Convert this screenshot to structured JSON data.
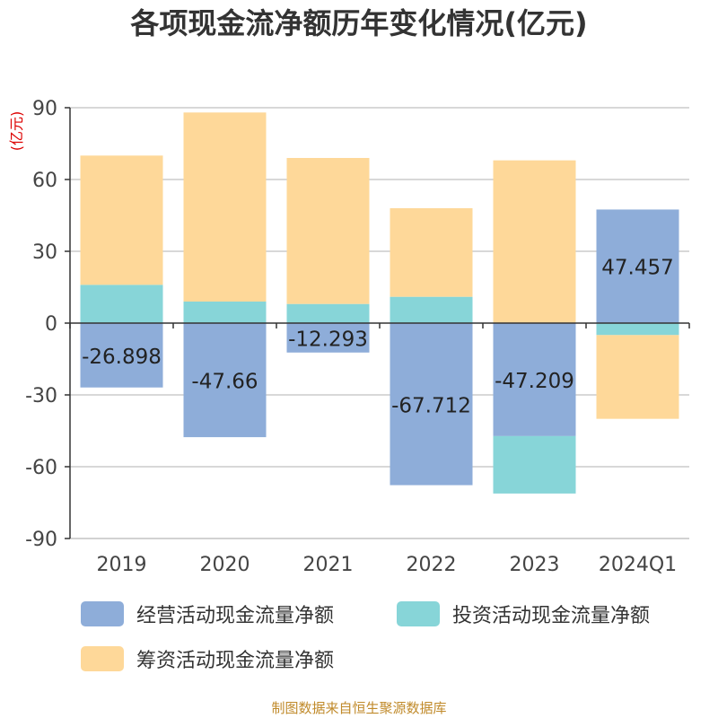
{
  "chart_data": {
    "type": "bar",
    "stacked": true,
    "title": "各项现金流净额历年变化情况(亿元)",
    "ylabel": "(亿元)",
    "xlabel": "",
    "categories": [
      "2019",
      "2020",
      "2021",
      "2022",
      "2023",
      "2024Q1"
    ],
    "ylim": [
      -90,
      90
    ],
    "yticks": [
      90,
      60,
      30,
      0,
      -30,
      -60,
      -90
    ],
    "series": [
      {
        "name": "经营活动现金流量净额",
        "color": "#8eadd9",
        "values": [
          -26.898,
          -47.66,
          -12.293,
          -67.712,
          -47.209,
          47.457
        ],
        "labels": [
          "-26.898",
          "-47.66",
          "-12.293",
          "-67.712",
          "-47.209",
          "47.457"
        ]
      },
      {
        "name": "投资活动现金流量净额",
        "color": "#87d5d8",
        "values": [
          16,
          9,
          8,
          11,
          -24,
          -5
        ]
      },
      {
        "name": "筹资活动现金流量净额",
        "color": "#fed899",
        "values": [
          54,
          79,
          61,
          37,
          68,
          -35
        ]
      }
    ],
    "legend_position": "bottom",
    "source": "制图数据来自恒生聚源数据库"
  }
}
